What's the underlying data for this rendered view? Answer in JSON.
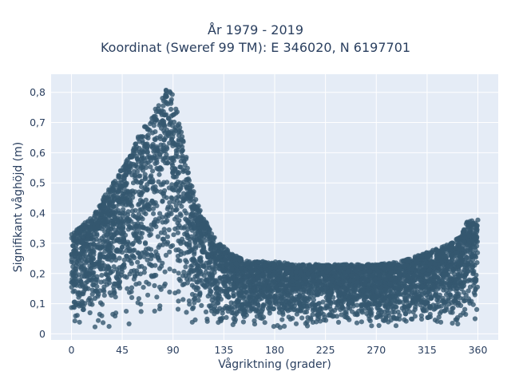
{
  "chart_data": {
    "type": "scatter",
    "title_line1": "År 1979 - 2019",
    "title_line2": "Koordinat (Sweref 99 TM): E 346020, N 6197701",
    "xlabel": "Vågriktning (grader)",
    "ylabel": "Signifikant våghöjd (m)",
    "xlim": [
      -18,
      378
    ],
    "ylim": [
      -0.02,
      0.86
    ],
    "xticks": [
      0,
      45,
      90,
      135,
      180,
      225,
      270,
      315,
      360
    ],
    "xtick_labels": [
      "0",
      "45",
      "90",
      "135",
      "180",
      "225",
      "270",
      "315",
      "360"
    ],
    "yticks": [
      0,
      0.1,
      0.2,
      0.3,
      0.4,
      0.5,
      0.6,
      0.7,
      0.8
    ],
    "ytick_labels": [
      "0",
      "0,1",
      "0,2",
      "0,3",
      "0,4",
      "0,5",
      "0,6",
      "0,7",
      "0,8"
    ],
    "grid": true,
    "background": "#e5ecf6",
    "marker_color": "#34586f",
    "upper_envelope": {
      "direction_deg": [
        0,
        10,
        20,
        30,
        40,
        50,
        60,
        70,
        80,
        85,
        90,
        95,
        100,
        105,
        110,
        115,
        120,
        125,
        130,
        135,
        140,
        150,
        160,
        180,
        200,
        225,
        250,
        270,
        290,
        300,
        315,
        330,
        340,
        345,
        350,
        360
      ],
      "max_height_m": [
        0.33,
        0.36,
        0.4,
        0.46,
        0.52,
        0.58,
        0.66,
        0.72,
        0.78,
        0.82,
        0.8,
        0.72,
        0.62,
        0.52,
        0.45,
        0.4,
        0.37,
        0.33,
        0.3,
        0.29,
        0.27,
        0.25,
        0.24,
        0.24,
        0.23,
        0.23,
        0.23,
        0.23,
        0.24,
        0.25,
        0.27,
        0.29,
        0.31,
        0.33,
        0.37,
        0.38
      ]
    },
    "lower_bound_m": 0.02
  }
}
